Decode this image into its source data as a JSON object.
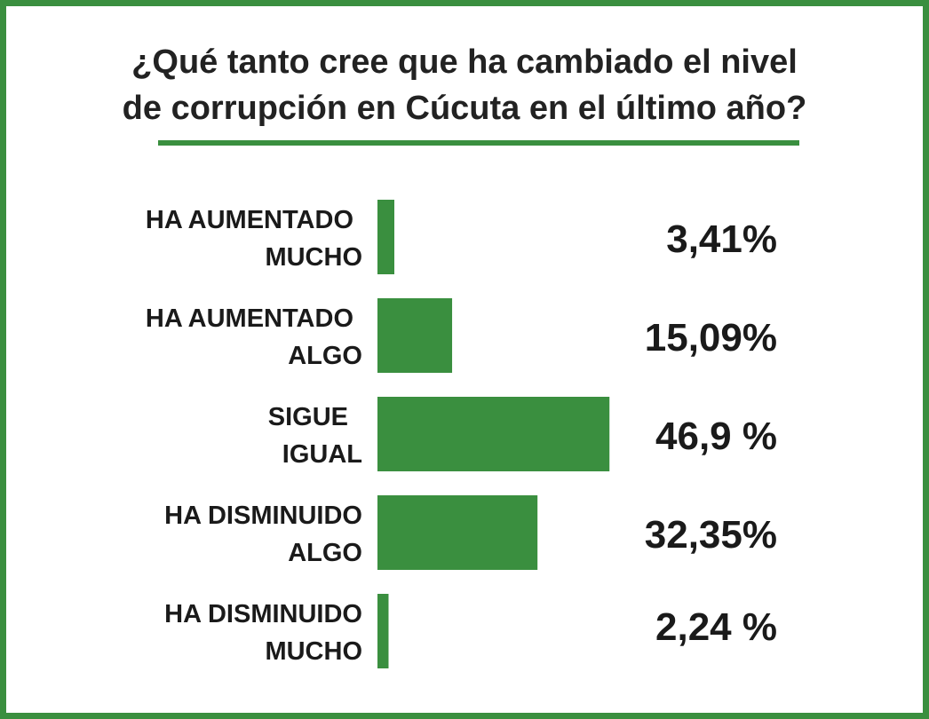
{
  "chart_data": {
    "type": "bar",
    "orientation": "horizontal",
    "title": "¿Qué tanto cree que ha cambiado el nivel de corrupción en Cúcuta en el último año?",
    "title_lines": [
      "¿Qué tanto cree que ha cambiado el nivel",
      "de corrupción en Cúcuta en el último año?"
    ],
    "categories": [
      "HA AUMENTADO MUCHO",
      "HA AUMENTADO ALGO",
      "SIGUE IGUAL",
      "HA DISMINUIDO ALGO",
      "HA DISMINUIDO MUCHO"
    ],
    "category_lines": [
      [
        "HA AUMENTADO",
        "MUCHO"
      ],
      [
        "HA AUMENTADO",
        "ALGO"
      ],
      [
        "SIGUE",
        "IGUAL"
      ],
      [
        "HA DISMINUIDO",
        "ALGO"
      ],
      [
        "HA DISMINUIDO",
        "MUCHO"
      ]
    ],
    "values": [
      3.41,
      15.09,
      46.9,
      32.35,
      2.24
    ],
    "value_labels": [
      "3,41%",
      "15,09%",
      "46,9 %",
      "32,35%",
      "2,24 %"
    ],
    "xlabel": "",
    "ylabel": "",
    "xlim": [
      0,
      100
    ],
    "grid": false,
    "legend": "none",
    "bar_color": "#3a8f3f",
    "frame_color": "#3a8f3f"
  }
}
